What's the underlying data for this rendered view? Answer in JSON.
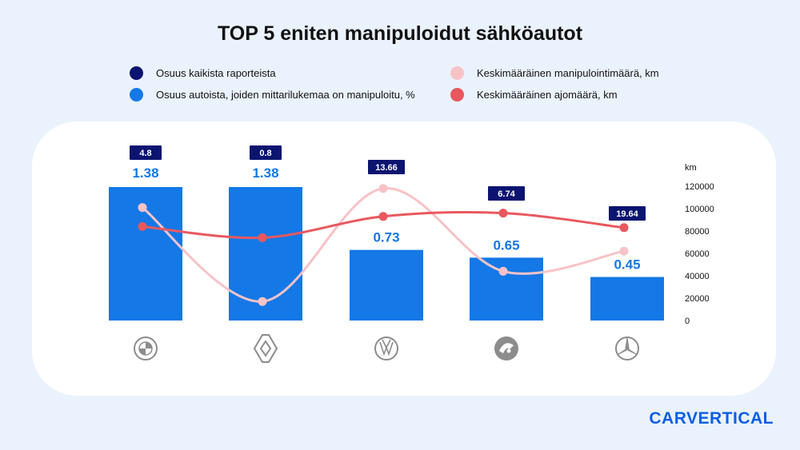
{
  "title": "TOP 5 eniten manipuloidut sähköautot",
  "legend": [
    {
      "label": "Osuus kaikista raporteista",
      "color": "#0b1470"
    },
    {
      "label": "Osuus autoista, joiden mittarilukemaa on manipuloitu, %",
      "color": "#1478e6"
    },
    {
      "label": "Keskimääräinen manipulointimäärä, km",
      "color": "#f8c3c7"
    },
    {
      "label": "Keskimääräinen ajomäärä, km",
      "color": "#e9585f"
    }
  ],
  "brand_logo": "CARVERTICAL",
  "chart_data": {
    "type": "bar",
    "categories_icons": [
      "bmw-icon",
      "renault-icon",
      "volkswagen-icon",
      "skoda-icon",
      "mercedes-icon"
    ],
    "series": [
      {
        "name": "Osuus kaikista raporteista",
        "labels": [
          "4.8",
          "0.8",
          "13.66",
          "6.74",
          "19.64"
        ],
        "values": [
          4.8,
          0.8,
          13.66,
          6.74,
          19.64
        ],
        "color": "#0b1470"
      },
      {
        "name": "Osuus autoista, joiden mittarilukemaa on manipuloitu, %",
        "labels": [
          "1.38",
          "1.38",
          "0.73",
          "0.65",
          "0.45"
        ],
        "values": [
          1.38,
          1.38,
          0.73,
          0.65,
          0.45
        ],
        "color": "#1478e6"
      },
      {
        "name": "Keskimääräinen manipulointimäärä, km",
        "values": [
          101000,
          17000,
          118000,
          44000,
          62000
        ],
        "color": "#f8c3c7"
      },
      {
        "name": "Keskimääräinen ajomäärä, km",
        "values": [
          84000,
          74000,
          93000,
          96000,
          83000
        ],
        "color": "#e9585f"
      }
    ],
    "y_right": {
      "label": "km",
      "ticks": [
        "120000",
        "100000",
        "80000",
        "60000",
        "40000",
        "20000",
        "0"
      ],
      "range": [
        0,
        120000
      ]
    },
    "bar_range": [
      0,
      1.38
    ],
    "grid": false
  }
}
